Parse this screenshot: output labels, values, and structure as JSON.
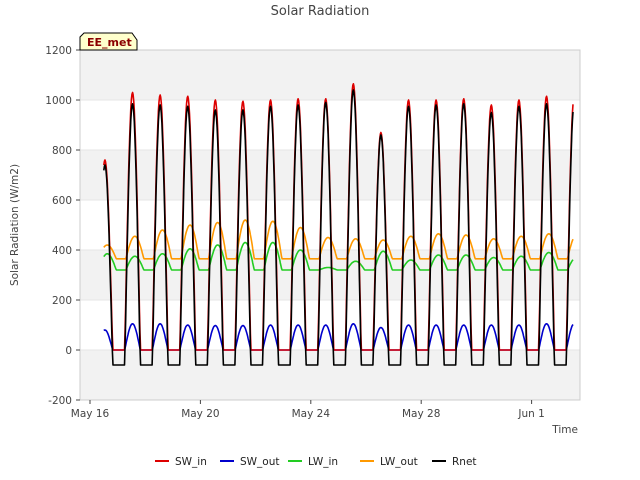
{
  "chart_data": {
    "type": "line",
    "title": "Solar Radiation",
    "xlabel": "Time",
    "ylabel": "Solar Radiation (W/m2)",
    "badge": "EE_met",
    "ylim": [
      -200,
      1200
    ],
    "yticks": [
      -200,
      0,
      200,
      400,
      600,
      800,
      1000,
      1200
    ],
    "xlim": [
      "2024-05-16",
      "2024-06-03"
    ],
    "xticks": [
      {
        "date": "2024-05-16",
        "label": "May 16"
      },
      {
        "date": "2024-05-20",
        "label": "May 20"
      },
      {
        "date": "2024-05-24",
        "label": "May 24"
      },
      {
        "date": "2024-05-28",
        "label": "May 28"
      },
      {
        "date": "2024-06-01",
        "label": "Jun 1"
      }
    ],
    "grid": true,
    "legend_position": "bottom-center",
    "days": [
      "2024-05-16",
      "2024-05-17",
      "2024-05-18",
      "2024-05-19",
      "2024-05-20",
      "2024-05-21",
      "2024-05-22",
      "2024-05-23",
      "2024-05-24",
      "2024-05-25",
      "2024-05-26",
      "2024-05-27",
      "2024-05-28",
      "2024-05-29",
      "2024-05-30",
      "2024-05-31",
      "2024-06-01",
      "2024-06-02"
    ],
    "series": [
      {
        "name": "SW_in",
        "color": "#dd0000",
        "daily_peak": [
          760,
          1030,
          1020,
          1015,
          1000,
          995,
          1000,
          1005,
          1005,
          1065,
          870,
          1000,
          1000,
          1005,
          980,
          1000,
          1015,
          1010
        ]
      },
      {
        "name": "SW_out",
        "color": "#0000cc",
        "daily_peak": [
          80,
          105,
          105,
          100,
          98,
          98,
          100,
          100,
          100,
          105,
          90,
          100,
          100,
          100,
          100,
          100,
          105,
          105
        ]
      },
      {
        "name": "LW_in",
        "color": "#22cc22",
        "daily_peak": [
          385,
          375,
          385,
          405,
          420,
          430,
          430,
          400,
          330,
          355,
          395,
          360,
          380,
          380,
          370,
          375,
          390,
          370
        ]
      },
      {
        "name": "LW_out",
        "color": "#ff9900",
        "daily_peak": [
          420,
          455,
          480,
          500,
          510,
          520,
          515,
          490,
          450,
          445,
          440,
          455,
          465,
          460,
          445,
          455,
          465,
          460
        ]
      },
      {
        "name": "Rnet",
        "color": "#000000",
        "daily_peak": [
          740,
          985,
          980,
          975,
          960,
          960,
          975,
          980,
          990,
          1040,
          860,
          975,
          980,
          985,
          950,
          975,
          985,
          980
        ]
      }
    ],
    "night_values": {
      "SW_in": 0,
      "SW_out": 0,
      "LW_in": 320,
      "LW_out": 365,
      "Rnet": -60
    }
  }
}
